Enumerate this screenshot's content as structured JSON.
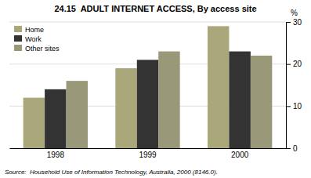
{
  "chart_data": {
    "type": "bar",
    "title": "24.15  ADULT INTERNET ACCESS, By access site",
    "categories": [
      "1998",
      "1999",
      "2000"
    ],
    "series": [
      {
        "name": "Home",
        "color": "#aaa87a",
        "values": [
          12,
          19,
          29
        ]
      },
      {
        "name": "Work",
        "color": "#333333",
        "values": [
          14,
          21,
          23
        ]
      },
      {
        "name": "Other sites",
        "color": "#999878",
        "values": [
          16,
          23,
          22
        ]
      }
    ],
    "y_label": "%",
    "ylim": [
      0,
      30
    ],
    "yticks": [
      0,
      10,
      20,
      30
    ],
    "grid": true,
    "legend": "top-left",
    "annotations": [
      "Source:  Household Use of Information Technology, Australia, 2000 (8146.0)."
    ]
  }
}
